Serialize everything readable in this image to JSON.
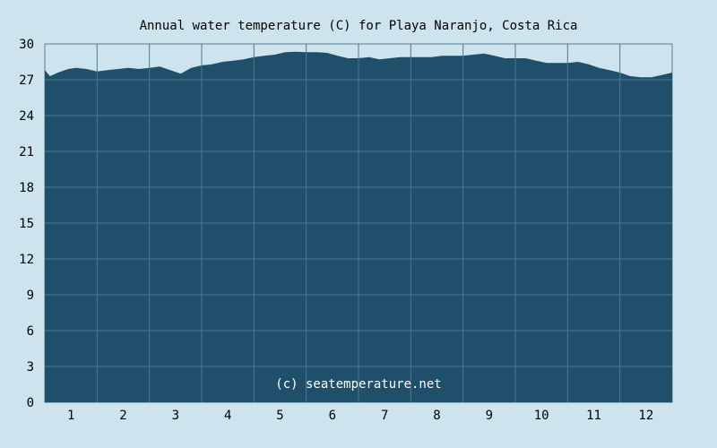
{
  "chart_data": {
    "type": "area",
    "title": "Annual water temperature (C) for Playa Naranjo, Costa Rica",
    "xlabel": "",
    "ylabel": "",
    "credit": "(c) seatemperature.net",
    "ylim": [
      0,
      30
    ],
    "yticks": [
      "0",
      "3",
      "6",
      "9",
      "12",
      "15",
      "18",
      "21",
      "24",
      "27",
      "30"
    ],
    "categories": [
      "1",
      "2",
      "3",
      "4",
      "5",
      "6",
      "7",
      "8",
      "9",
      "10",
      "11",
      "12"
    ],
    "xlim": [
      0,
      12
    ],
    "grid": true,
    "series_color": "#1f4f6b",
    "series": [
      {
        "x": [
          0.0,
          0.1,
          0.25,
          0.45,
          0.6,
          0.8,
          1.0,
          1.2,
          1.4,
          1.6,
          1.8,
          2.0,
          2.2,
          2.4,
          2.6,
          2.8,
          3.0,
          3.2,
          3.4,
          3.6,
          3.8,
          4.0,
          4.2,
          4.4,
          4.6,
          4.8,
          5.0,
          5.2,
          5.4,
          5.6,
          5.8,
          6.0,
          6.2,
          6.4,
          6.6,
          6.8,
          7.0,
          7.2,
          7.4,
          7.6,
          7.8,
          8.0,
          8.2,
          8.4,
          8.6,
          8.8,
          9.0,
          9.2,
          9.4,
          9.6,
          9.8,
          10.0,
          10.2,
          10.4,
          10.6,
          10.8,
          11.0,
          11.2,
          11.4,
          11.6,
          11.8,
          12.0
        ],
        "values": [
          27.8,
          27.3,
          27.6,
          27.9,
          28.0,
          27.9,
          27.7,
          27.8,
          27.9,
          28.0,
          27.9,
          28.0,
          28.1,
          27.8,
          27.5,
          28.0,
          28.2,
          28.3,
          28.5,
          28.6,
          28.7,
          28.9,
          29.0,
          29.1,
          29.3,
          29.35,
          29.3,
          29.3,
          29.25,
          29.0,
          28.8,
          28.8,
          28.9,
          28.7,
          28.8,
          28.9,
          28.9,
          28.9,
          28.9,
          29.0,
          29.0,
          29.0,
          29.1,
          29.2,
          29.0,
          28.8,
          28.8,
          28.8,
          28.6,
          28.4,
          28.4,
          28.4,
          28.5,
          28.3,
          28.0,
          27.8,
          27.6,
          27.3,
          27.2,
          27.2,
          27.4,
          27.6
        ]
      }
    ]
  }
}
